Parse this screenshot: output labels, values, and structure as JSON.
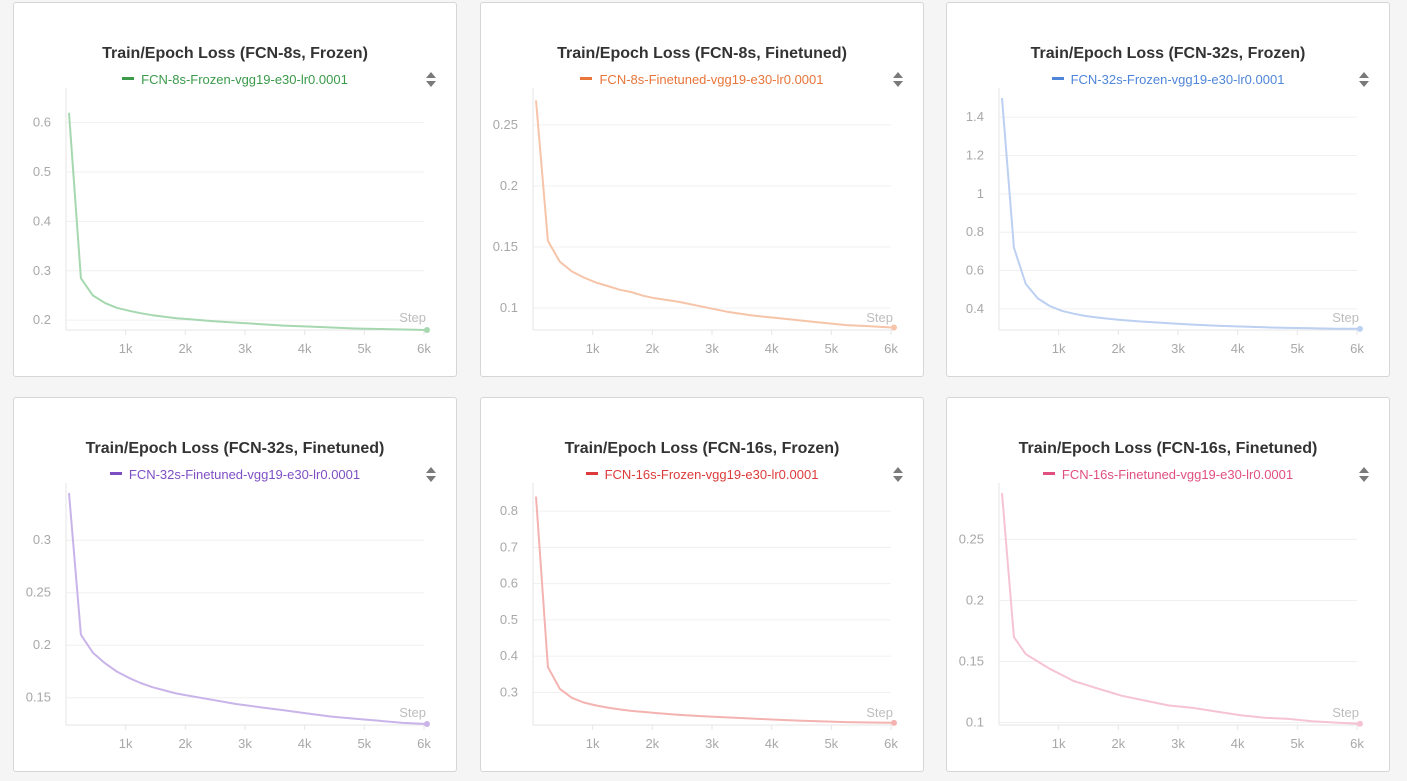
{
  "colors": {
    "background": "#f5f5f5",
    "panel": "#ffffff",
    "grid": "#f0f0f0",
    "axis": "#e6e6e6",
    "tick_text": "#a8a8a8",
    "title_text": "#333333"
  },
  "panel_menu_icon": "panel-menu-icon",
  "chart_data": [
    {
      "type": "line",
      "title": "Train/Epoch Loss (FCN-8s, Frozen)",
      "xlabel": "Step",
      "ylabel": "",
      "x_ticks": [
        1000,
        2000,
        3000,
        4000,
        5000,
        6000
      ],
      "x_tick_labels": [
        "1k",
        "2k",
        "3k",
        "4k",
        "5k",
        "6k"
      ],
      "y_ticks": [
        0.2,
        0.3,
        0.4,
        0.5,
        0.6
      ],
      "y_tick_labels": [
        "0.2",
        "0.3",
        "0.4",
        "0.5",
        "0.6"
      ],
      "xlim": [
        0,
        6000
      ],
      "ylim": [
        0.18,
        0.65
      ],
      "grid": true,
      "legend_position": "top-center",
      "series": [
        {
          "name": "FCN-8s-Frozen-vgg19-e30-lr0.0001",
          "legend_color": "#3a9a4a",
          "line_color": "#a6d8b0",
          "x": [
            50,
            250,
            450,
            650,
            850,
            1050,
            1250,
            1450,
            1650,
            1850,
            2050,
            2450,
            2850,
            3250,
            3650,
            4050,
            4450,
            4850,
            5250,
            5650,
            6050
          ],
          "y": [
            0.62,
            0.285,
            0.25,
            0.235,
            0.225,
            0.219,
            0.214,
            0.21,
            0.207,
            0.204,
            0.202,
            0.198,
            0.195,
            0.192,
            0.189,
            0.187,
            0.185,
            0.183,
            0.182,
            0.181,
            0.18
          ]
        }
      ]
    },
    {
      "type": "line",
      "title": "Train/Epoch Loss (FCN-8s, Finetuned)",
      "xlabel": "Step",
      "ylabel": "",
      "x_ticks": [
        1000,
        2000,
        3000,
        4000,
        5000,
        6000
      ],
      "x_tick_labels": [
        "1k",
        "2k",
        "3k",
        "4k",
        "5k",
        "6k"
      ],
      "y_ticks": [
        0.1,
        0.15,
        0.2,
        0.25
      ],
      "y_tick_labels": [
        "0.1",
        "0.15",
        "0.2",
        "0.25"
      ],
      "xlim": [
        0,
        6000
      ],
      "ylim": [
        0.082,
        0.272
      ],
      "grid": true,
      "legend_position": "top-center",
      "series": [
        {
          "name": "FCN-8s-Finetuned-vgg19-e30-lr0.0001",
          "legend_color": "#e8753a",
          "line_color": "#f6c4a8",
          "x": [
            50,
            250,
            450,
            650,
            850,
            1050,
            1250,
            1450,
            1650,
            1850,
            2050,
            2450,
            2850,
            3250,
            3650,
            4050,
            4450,
            4850,
            5250,
            5650,
            6050
          ],
          "y": [
            0.27,
            0.155,
            0.138,
            0.13,
            0.125,
            0.121,
            0.118,
            0.115,
            0.113,
            0.11,
            0.108,
            0.105,
            0.101,
            0.097,
            0.094,
            0.092,
            0.09,
            0.088,
            0.086,
            0.085,
            0.084
          ]
        }
      ]
    },
    {
      "type": "line",
      "title": "Train/Epoch Loss (FCN-32s, Frozen)",
      "xlabel": "Step",
      "ylabel": "",
      "x_ticks": [
        1000,
        2000,
        3000,
        4000,
        5000,
        6000
      ],
      "x_tick_labels": [
        "1k",
        "2k",
        "3k",
        "4k",
        "5k",
        "6k"
      ],
      "y_ticks": [
        0.4,
        0.6,
        0.8,
        1,
        1.2,
        1.4
      ],
      "y_tick_labels": [
        "0.4",
        "0.6",
        "0.8",
        "1",
        "1.2",
        "1.4"
      ],
      "xlim": [
        0,
        6000
      ],
      "ylim": [
        0.29,
        1.5
      ],
      "grid": true,
      "legend_position": "top-center",
      "series": [
        {
          "name": "FCN-32s-Frozen-vgg19-e30-lr0.0001",
          "legend_color": "#4f86d9",
          "line_color": "#bcd0f2",
          "x": [
            50,
            250,
            450,
            650,
            850,
            1050,
            1250,
            1450,
            1650,
            1850,
            2050,
            2450,
            2850,
            3250,
            3650,
            4050,
            4450,
            4850,
            5250,
            5650,
            6050
          ],
          "y": [
            1.5,
            0.72,
            0.53,
            0.455,
            0.415,
            0.39,
            0.375,
            0.363,
            0.355,
            0.348,
            0.342,
            0.333,
            0.325,
            0.318,
            0.312,
            0.308,
            0.304,
            0.301,
            0.299,
            0.297,
            0.296
          ]
        }
      ]
    },
    {
      "type": "line",
      "title": "Train/Epoch Loss (FCN-32s, Finetuned)",
      "xlabel": "Step",
      "ylabel": "",
      "x_ticks": [
        1000,
        2000,
        3000,
        4000,
        5000,
        6000
      ],
      "x_tick_labels": [
        "1k",
        "2k",
        "3k",
        "4k",
        "5k",
        "6k"
      ],
      "y_ticks": [
        0.15,
        0.2,
        0.25,
        0.3
      ],
      "y_tick_labels": [
        "0.15",
        "0.2",
        "0.25",
        "0.3"
      ],
      "xlim": [
        0,
        6000
      ],
      "ylim": [
        0.124,
        0.345
      ],
      "grid": true,
      "legend_position": "top-center",
      "series": [
        {
          "name": "FCN-32s-Finetuned-vgg19-e30-lr0.0001",
          "legend_color": "#7e4fc4",
          "line_color": "#c9b4ea",
          "x": [
            50,
            250,
            450,
            650,
            850,
            1050,
            1250,
            1450,
            1650,
            1850,
            2050,
            2450,
            2850,
            3250,
            3650,
            4050,
            4450,
            4850,
            5250,
            5650,
            6050
          ],
          "y": [
            0.345,
            0.21,
            0.193,
            0.183,
            0.175,
            0.169,
            0.164,
            0.16,
            0.157,
            0.154,
            0.152,
            0.148,
            0.144,
            0.141,
            0.138,
            0.135,
            0.132,
            0.13,
            0.128,
            0.126,
            0.125
          ]
        }
      ]
    },
    {
      "type": "line",
      "title": "Train/Epoch Loss (FCN-16s, Frozen)",
      "xlabel": "Step",
      "ylabel": "",
      "x_ticks": [
        1000,
        2000,
        3000,
        4000,
        5000,
        6000
      ],
      "x_tick_labels": [
        "1k",
        "2k",
        "3k",
        "4k",
        "5k",
        "6k"
      ],
      "y_ticks": [
        0.3,
        0.4,
        0.5,
        0.6,
        0.7,
        0.8
      ],
      "y_tick_labels": [
        "0.3",
        "0.4",
        "0.5",
        "0.6",
        "0.7",
        "0.8"
      ],
      "xlim": [
        0,
        6000
      ],
      "ylim": [
        0.21,
        0.85
      ],
      "grid": true,
      "legend_position": "top-center",
      "series": [
        {
          "name": "FCN-16s-Frozen-vgg19-e30-lr0.0001",
          "legend_color": "#dd3b3b",
          "line_color": "#f3b3b0",
          "x": [
            50,
            250,
            450,
            650,
            850,
            1050,
            1250,
            1450,
            1650,
            1850,
            2050,
            2450,
            2850,
            3250,
            3650,
            4050,
            4450,
            4850,
            5250,
            5650,
            6050
          ],
          "y": [
            0.84,
            0.37,
            0.31,
            0.285,
            0.272,
            0.264,
            0.258,
            0.253,
            0.249,
            0.246,
            0.243,
            0.238,
            0.234,
            0.231,
            0.228,
            0.225,
            0.222,
            0.22,
            0.218,
            0.217,
            0.216
          ]
        }
      ]
    },
    {
      "type": "line",
      "title": "Train/Epoch Loss (FCN-16s, Finetuned)",
      "xlabel": "Step",
      "ylabel": "",
      "x_ticks": [
        1000,
        2000,
        3000,
        4000,
        5000,
        6000
      ],
      "x_tick_labels": [
        "1k",
        "2k",
        "3k",
        "4k",
        "5k",
        "6k"
      ],
      "y_ticks": [
        0.1,
        0.15,
        0.2,
        0.25
      ],
      "y_tick_labels": [
        "0.1",
        "0.15",
        "0.2",
        "0.25"
      ],
      "xlim": [
        0,
        6000
      ],
      "ylim": [
        0.098,
        0.288
      ],
      "grid": true,
      "legend_position": "top-center",
      "series": [
        {
          "name": "FCN-16s-Finetuned-vgg19-e30-lr0.0001",
          "legend_color": "#e0507f",
          "line_color": "#f6c3d3",
          "x": [
            50,
            250,
            450,
            650,
            850,
            1050,
            1250,
            1450,
            1650,
            1850,
            2050,
            2450,
            2850,
            3250,
            3650,
            4050,
            4450,
            4850,
            5250,
            5650,
            6050
          ],
          "y": [
            0.288,
            0.17,
            0.156,
            0.15,
            0.144,
            0.139,
            0.134,
            0.131,
            0.128,
            0.125,
            0.122,
            0.118,
            0.114,
            0.112,
            0.109,
            0.106,
            0.104,
            0.103,
            0.101,
            0.1,
            0.099
          ]
        }
      ]
    }
  ]
}
